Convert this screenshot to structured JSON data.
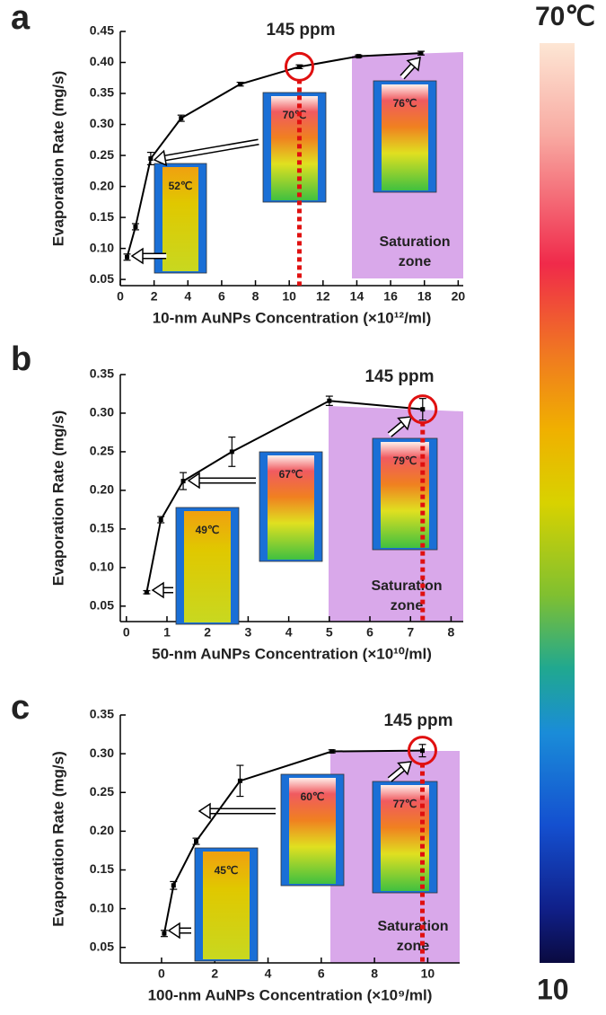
{
  "chart_data": [
    {
      "type": "line",
      "panel_label": "a",
      "annotation": "145 ppm",
      "zone_label": [
        "Saturation",
        "zone"
      ],
      "y_label": "Evaporation Rate (mg/s)",
      "x_label": "10-nm AuNPs Concentration (×10¹²/ml)",
      "insets": [
        "52℃",
        "70℃",
        "76℃"
      ],
      "x": [
        0.4,
        0.9,
        1.8,
        3.6,
        7.1,
        10.6,
        14.1,
        17.8
      ],
      "series": [
        {
          "color": "#000000",
          "values": [
            0.086,
            0.135,
            0.245,
            0.31,
            0.365,
            0.393,
            0.41,
            0.415
          ],
          "errors": [
            0.005,
            0.005,
            0.01,
            0.005,
            0.003,
            0.003,
            0.002,
            0.003
          ]
        }
      ],
      "xlim": [
        0,
        20.3
      ],
      "xticks": [
        0,
        2,
        4,
        6,
        8,
        10,
        12,
        14,
        16,
        18,
        20
      ],
      "ylim": [
        0.04,
        0.45
      ],
      "yticks": [
        0.05,
        {
          "value": 0.1,
          "label": "0.10"
        },
        0.15,
        {
          "value": 0.2,
          "label": "0.20"
        },
        0.25,
        {
          "value": 0.3,
          "label": "0.30"
        },
        0.35,
        {
          "value": 0.4,
          "label": "0.40"
        },
        0.45
      ]
    },
    {
      "type": "line",
      "panel_label": "b",
      "annotation": "145 ppm",
      "zone_label": [
        "Saturation",
        "zone"
      ],
      "y_label": "Evaporation Rate (mg/s)",
      "x_label": "50-nm AuNPs Concentration (×10¹⁰/ml)",
      "insets": [
        "49℃",
        "67℃",
        "79℃"
      ],
      "x": [
        0.5,
        0.85,
        1.4,
        2.6,
        5.0,
        7.3
      ],
      "series": [
        {
          "color": "#000000",
          "values": [
            0.068,
            0.162,
            0.212,
            0.25,
            0.316,
            0.305
          ],
          "errors": [
            0.002,
            0.004,
            0.011,
            0.019,
            0.006,
            0.014
          ]
        }
      ],
      "xlim": [
        -0.15,
        8.3
      ],
      "xticks": [
        0,
        1,
        2,
        3,
        4,
        5,
        6,
        7,
        8
      ],
      "ylim": [
        0.03,
        0.35
      ],
      "yticks": [
        0.05,
        {
          "value": 0.1,
          "label": "0.10"
        },
        0.15,
        {
          "value": 0.2,
          "label": "0.20"
        },
        0.25,
        {
          "value": 0.3,
          "label": "0.30"
        },
        0.35
      ]
    },
    {
      "type": "line",
      "panel_label": "c",
      "annotation": "145 ppm",
      "zone_label": [
        "Saturation",
        "zone"
      ],
      "y_label": "Evaporation Rate (mg/s)",
      "x_label": "100-nm AuNPs Concentration (×10⁹/ml)",
      "insets": [
        "45℃",
        "60℃",
        "77℃"
      ],
      "x": [
        0.1,
        0.45,
        1.3,
        2.95,
        6.4,
        9.8
      ],
      "series": [
        {
          "color": "#000000",
          "values": [
            0.068,
            0.13,
            0.187,
            0.265,
            0.303,
            0.304
          ],
          "errors": [
            0.004,
            0.005,
            0.004,
            0.02,
            0.002,
            0.008
          ]
        }
      ],
      "xlim": [
        -1.55,
        11.2
      ],
      "xticks": [
        0,
        2,
        4,
        6,
        8,
        10
      ],
      "ylim": [
        0.03,
        0.35
      ],
      "yticks": [
        0.05,
        {
          "value": 0.1,
          "label": "0.10"
        },
        0.15,
        {
          "value": 0.2,
          "label": "0.20"
        },
        0.25,
        {
          "value": 0.3,
          "label": "0.30"
        },
        0.35
      ]
    }
  ],
  "colorbar": {
    "max_label": "70℃",
    "min_label": "10"
  }
}
